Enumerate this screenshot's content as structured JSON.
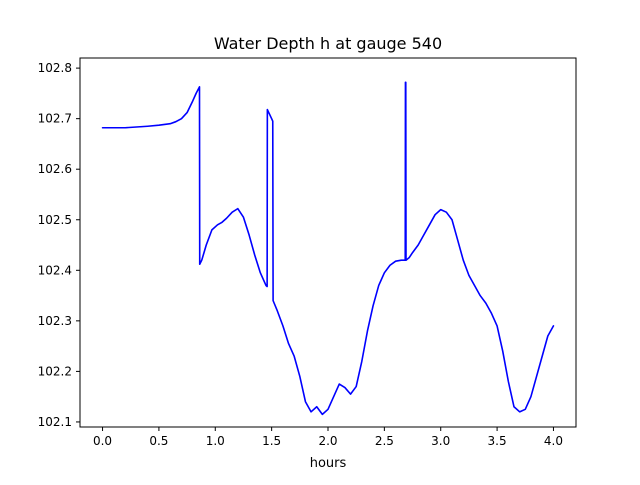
{
  "chart_data": {
    "type": "line",
    "title": "Water Depth h at gauge 540",
    "xlabel": "hours",
    "ylabel": "",
    "xlim": [
      -0.2,
      4.2
    ],
    "ylim": [
      102.09,
      102.82
    ],
    "x_ticks": [
      0.0,
      0.5,
      1.0,
      1.5,
      2.0,
      2.5,
      3.0,
      3.5,
      4.0
    ],
    "x_tick_labels": [
      "0.0",
      "0.5",
      "1.0",
      "1.5",
      "2.0",
      "2.5",
      "3.0",
      "3.5",
      "4.0"
    ],
    "y_ticks": [
      102.1,
      102.2,
      102.3,
      102.4,
      102.5,
      102.6,
      102.7,
      102.8
    ],
    "y_tick_labels": [
      "102.1",
      "102.2",
      "102.3",
      "102.4",
      "102.5",
      "102.6",
      "102.7",
      "102.8"
    ],
    "grid": false,
    "series": [
      {
        "color": "#0000ff",
        "x": [
          0.0,
          0.2,
          0.4,
          0.5,
          0.6,
          0.65,
          0.7,
          0.75,
          0.8,
          0.83,
          0.86,
          0.862,
          0.88,
          0.92,
          0.97,
          1.02,
          1.06,
          1.1,
          1.15,
          1.2,
          1.25,
          1.3,
          1.35,
          1.4,
          1.45,
          1.46,
          1.462,
          1.5,
          1.51,
          1.513,
          1.55,
          1.6,
          1.65,
          1.7,
          1.75,
          1.8,
          1.85,
          1.9,
          1.95,
          2.0,
          2.05,
          2.1,
          2.15,
          2.2,
          2.25,
          2.3,
          2.35,
          2.4,
          2.45,
          2.5,
          2.55,
          2.6,
          2.65,
          2.685,
          2.687,
          2.69,
          2.692,
          2.72,
          2.75,
          2.8,
          2.85,
          2.9,
          2.95,
          3.0,
          3.05,
          3.1,
          3.15,
          3.2,
          3.25,
          3.3,
          3.35,
          3.4,
          3.45,
          3.5,
          3.55,
          3.6,
          3.65,
          3.7,
          3.75,
          3.8,
          3.85,
          3.9,
          3.95,
          4.0
        ],
        "y": [
          102.682,
          102.682,
          102.685,
          102.687,
          102.69,
          102.694,
          102.7,
          102.712,
          102.735,
          102.75,
          102.763,
          102.412,
          102.42,
          102.45,
          102.48,
          102.49,
          102.495,
          102.503,
          102.515,
          102.522,
          102.505,
          102.47,
          102.43,
          102.395,
          102.37,
          102.368,
          102.718,
          102.7,
          102.695,
          102.34,
          102.32,
          102.29,
          102.255,
          102.23,
          102.19,
          102.14,
          102.12,
          102.13,
          102.115,
          102.125,
          102.15,
          102.175,
          102.168,
          102.155,
          102.17,
          102.22,
          102.28,
          102.33,
          102.37,
          102.395,
          102.41,
          102.418,
          102.42,
          102.42,
          102.772,
          102.772,
          102.42,
          102.425,
          102.435,
          102.45,
          102.47,
          102.49,
          102.51,
          102.52,
          102.515,
          102.5,
          102.46,
          102.42,
          102.39,
          102.37,
          102.35,
          102.335,
          102.315,
          102.29,
          102.24,
          102.18,
          102.13,
          102.12,
          102.125,
          102.15,
          102.19,
          102.23,
          102.27,
          102.29
        ]
      }
    ]
  }
}
